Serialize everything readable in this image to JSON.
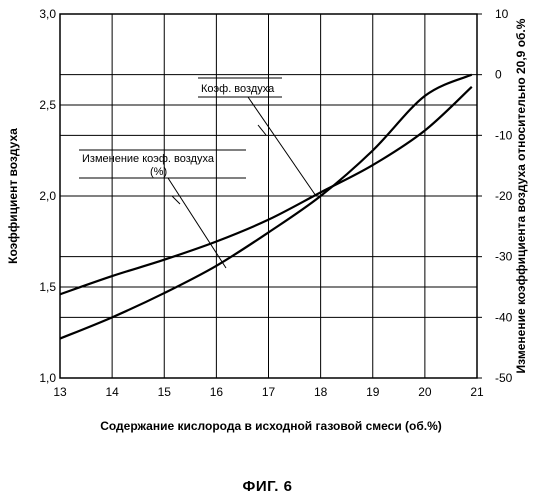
{
  "figure_caption": "ФИГ. 6",
  "chart_data": {
    "type": "line",
    "xlabel": "Содержание кислорода в исходной газовой смеси (об.%)",
    "ylabel_left": "Коэффициент воздуха",
    "ylabel_right": "Изменение коэффициента воздуха относительно 20,9 об.%",
    "xlim": [
      13,
      21
    ],
    "ylim_left": [
      1.0,
      3.0
    ],
    "ylim_right": [
      -50,
      10
    ],
    "x_ticks": [
      "13",
      "14",
      "15",
      "16",
      "17",
      "18",
      "19",
      "20",
      "21"
    ],
    "y_left_ticks": [
      "1,0",
      "1,5",
      "2,0",
      "2,5",
      "3,0"
    ],
    "y_right_ticks": [
      "10",
      "0",
      "-10",
      "-20",
      "-30",
      "-40",
      "-50"
    ],
    "grid": true,
    "series": [
      {
        "name": "Коэф. воздуха",
        "axis": "left",
        "x": [
          13,
          14,
          15,
          16,
          17,
          18,
          19,
          20,
          20.9
        ],
        "y": [
          1.46,
          1.56,
          1.65,
          1.75,
          1.87,
          2.02,
          2.17,
          2.36,
          2.6
        ]
      },
      {
        "name": "Изменение коэф. воздуха (%)",
        "axis": "right",
        "x": [
          13,
          14,
          15,
          16,
          17,
          18,
          19,
          20,
          20.9
        ],
        "y": [
          -43.5,
          -40,
          -36,
          -31.5,
          -26,
          -20,
          -12.5,
          -3.5,
          0
        ]
      }
    ],
    "annotations": [
      {
        "text": "Коэф. воздуха",
        "points_to": "Коэф. воздуха"
      },
      {
        "text_lines": [
          "Изменение коэф. воздуха",
          "(%)"
        ],
        "points_to": "Изменение коэф. воздуха (%)"
      }
    ]
  }
}
